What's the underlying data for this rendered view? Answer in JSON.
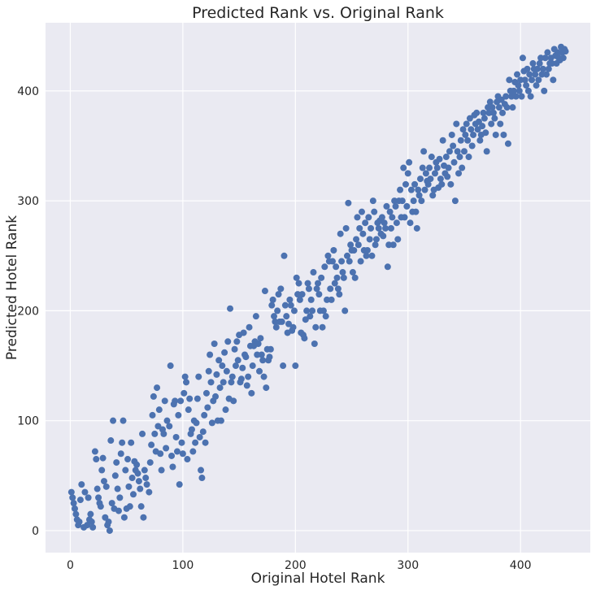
{
  "chart_data": {
    "type": "scatter",
    "title": "Predicted Rank vs. Original Rank",
    "xlabel": "Original Hotel Rank",
    "ylabel": "Predicted Hotel Rank",
    "xlim": [
      -22,
      462
    ],
    "ylim": [
      -20,
      462
    ],
    "xticks": [
      0,
      100,
      200,
      300,
      400
    ],
    "yticks": [
      0,
      100,
      200,
      300,
      400
    ],
    "grid": true,
    "background_color": "#EAEAF2",
    "grid_color": "#FFFFFF",
    "marker_color": "#4C72B0",
    "points": [
      [
        1,
        35
      ],
      [
        2,
        30
      ],
      [
        3,
        25
      ],
      [
        4,
        20
      ],
      [
        5,
        15
      ],
      [
        6,
        10
      ],
      [
        7,
        5
      ],
      [
        8,
        8
      ],
      [
        9,
        28
      ],
      [
        10,
        42
      ],
      [
        12,
        3
      ],
      [
        13,
        35
      ],
      [
        15,
        5
      ],
      [
        16,
        30
      ],
      [
        17,
        10
      ],
      [
        18,
        15
      ],
      [
        19,
        8
      ],
      [
        20,
        3
      ],
      [
        22,
        72
      ],
      [
        23,
        65
      ],
      [
        24,
        38
      ],
      [
        25,
        30
      ],
      [
        26,
        25
      ],
      [
        27,
        22
      ],
      [
        28,
        55
      ],
      [
        29,
        66
      ],
      [
        30,
        45
      ],
      [
        31,
        12
      ],
      [
        32,
        40
      ],
      [
        33,
        5
      ],
      [
        34,
        8
      ],
      [
        35,
        0
      ],
      [
        36,
        82
      ],
      [
        37,
        25
      ],
      [
        38,
        100
      ],
      [
        39,
        20
      ],
      [
        40,
        50
      ],
      [
        41,
        62
      ],
      [
        42,
        38
      ],
      [
        43,
        18
      ],
      [
        44,
        30
      ],
      [
        45,
        70
      ],
      [
        46,
        80
      ],
      [
        47,
        100
      ],
      [
        48,
        12
      ],
      [
        49,
        55
      ],
      [
        50,
        20
      ],
      [
        51,
        65
      ],
      [
        52,
        40
      ],
      [
        53,
        22
      ],
      [
        54,
        80
      ],
      [
        55,
        48
      ],
      [
        56,
        33
      ],
      [
        57,
        63
      ],
      [
        58,
        55
      ],
      [
        59,
        60
      ],
      [
        60,
        52
      ],
      [
        61,
        45
      ],
      [
        62,
        38
      ],
      [
        63,
        22
      ],
      [
        64,
        88
      ],
      [
        65,
        12
      ],
      [
        66,
        55
      ],
      [
        67,
        48
      ],
      [
        68,
        42
      ],
      [
        70,
        35
      ],
      [
        71,
        62
      ],
      [
        72,
        78
      ],
      [
        73,
        105
      ],
      [
        74,
        122
      ],
      [
        75,
        88
      ],
      [
        76,
        72
      ],
      [
        77,
        130
      ],
      [
        78,
        95
      ],
      [
        79,
        110
      ],
      [
        80,
        70
      ],
      [
        81,
        55
      ],
      [
        82,
        92
      ],
      [
        83,
        88
      ],
      [
        84,
        118
      ],
      [
        85,
        75
      ],
      [
        86,
        100
      ],
      [
        88,
        95
      ],
      [
        89,
        150
      ],
      [
        90,
        68
      ],
      [
        91,
        58
      ],
      [
        92,
        115
      ],
      [
        93,
        118
      ],
      [
        94,
        85
      ],
      [
        95,
        72
      ],
      [
        96,
        105
      ],
      [
        97,
        42
      ],
      [
        98,
        118
      ],
      [
        99,
        80
      ],
      [
        100,
        70
      ],
      [
        101,
        125
      ],
      [
        102,
        140
      ],
      [
        103,
        135
      ],
      [
        104,
        65
      ],
      [
        105,
        110
      ],
      [
        106,
        120
      ],
      [
        107,
        88
      ],
      [
        108,
        92
      ],
      [
        109,
        72
      ],
      [
        110,
        100
      ],
      [
        111,
        80
      ],
      [
        112,
        98
      ],
      [
        113,
        120
      ],
      [
        114,
        140
      ],
      [
        115,
        85
      ],
      [
        116,
        55
      ],
      [
        117,
        48
      ],
      [
        118,
        90
      ],
      [
        119,
        105
      ],
      [
        120,
        80
      ],
      [
        121,
        125
      ],
      [
        122,
        112
      ],
      [
        123,
        145
      ],
      [
        124,
        160
      ],
      [
        125,
        135
      ],
      [
        126,
        98
      ],
      [
        127,
        118
      ],
      [
        128,
        170
      ],
      [
        129,
        122
      ],
      [
        130,
        142
      ],
      [
        131,
        100
      ],
      [
        132,
        155
      ],
      [
        133,
        130
      ],
      [
        134,
        100
      ],
      [
        135,
        150
      ],
      [
        136,
        135
      ],
      [
        137,
        162
      ],
      [
        138,
        110
      ],
      [
        139,
        145
      ],
      [
        140,
        172
      ],
      [
        141,
        120
      ],
      [
        142,
        202
      ],
      [
        143,
        135
      ],
      [
        144,
        140
      ],
      [
        145,
        118
      ],
      [
        146,
        165
      ],
      [
        147,
        150
      ],
      [
        148,
        172
      ],
      [
        149,
        155
      ],
      [
        150,
        178
      ],
      [
        151,
        135
      ],
      [
        152,
        138
      ],
      [
        153,
        148
      ],
      [
        154,
        180
      ],
      [
        155,
        160
      ],
      [
        156,
        158
      ],
      [
        157,
        132
      ],
      [
        158,
        140
      ],
      [
        159,
        185
      ],
      [
        160,
        168
      ],
      [
        161,
        125
      ],
      [
        162,
        150
      ],
      [
        163,
        168
      ],
      [
        164,
        172
      ],
      [
        165,
        195
      ],
      [
        166,
        160
      ],
      [
        167,
        170
      ],
      [
        168,
        145
      ],
      [
        169,
        175
      ],
      [
        170,
        160
      ],
      [
        171,
        155
      ],
      [
        172,
        140
      ],
      [
        173,
        218
      ],
      [
        174,
        130
      ],
      [
        175,
        165
      ],
      [
        176,
        155
      ],
      [
        177,
        158
      ],
      [
        178,
        165
      ],
      [
        179,
        205
      ],
      [
        180,
        210
      ],
      [
        181,
        195
      ],
      [
        182,
        190
      ],
      [
        183,
        185
      ],
      [
        184,
        200
      ],
      [
        185,
        215
      ],
      [
        186,
        190
      ],
      [
        187,
        220
      ],
      [
        188,
        190
      ],
      [
        189,
        150
      ],
      [
        190,
        250
      ],
      [
        191,
        205
      ],
      [
        192,
        195
      ],
      [
        193,
        180
      ],
      [
        194,
        188
      ],
      [
        195,
        210
      ],
      [
        196,
        205
      ],
      [
        197,
        182
      ],
      [
        198,
        185
      ],
      [
        199,
        200
      ],
      [
        200,
        150
      ],
      [
        201,
        230
      ],
      [
        202,
        215
      ],
      [
        203,
        225
      ],
      [
        204,
        210
      ],
      [
        205,
        180
      ],
      [
        206,
        215
      ],
      [
        207,
        178
      ],
      [
        208,
        175
      ],
      [
        209,
        192
      ],
      [
        210,
        200
      ],
      [
        211,
        225
      ],
      [
        212,
        220
      ],
      [
        213,
        195
      ],
      [
        214,
        210
      ],
      [
        215,
        200
      ],
      [
        216,
        235
      ],
      [
        217,
        170
      ],
      [
        218,
        185
      ],
      [
        219,
        220
      ],
      [
        220,
        225
      ],
      [
        221,
        215
      ],
      [
        222,
        200
      ],
      [
        223,
        230
      ],
      [
        224,
        185
      ],
      [
        225,
        200
      ],
      [
        226,
        240
      ],
      [
        227,
        195
      ],
      [
        228,
        210
      ],
      [
        229,
        250
      ],
      [
        230,
        245
      ],
      [
        231,
        220
      ],
      [
        232,
        210
      ],
      [
        233,
        245
      ],
      [
        234,
        255
      ],
      [
        235,
        225
      ],
      [
        236,
        240
      ],
      [
        237,
        230
      ],
      [
        238,
        220
      ],
      [
        239,
        215
      ],
      [
        240,
        270
      ],
      [
        241,
        245
      ],
      [
        242,
        235
      ],
      [
        243,
        230
      ],
      [
        244,
        200
      ],
      [
        245,
        275
      ],
      [
        246,
        250
      ],
      [
        247,
        298
      ],
      [
        248,
        245
      ],
      [
        249,
        260
      ],
      [
        250,
        255
      ],
      [
        251,
        235
      ],
      [
        252,
        255
      ],
      [
        253,
        230
      ],
      [
        254,
        265
      ],
      [
        255,
        285
      ],
      [
        256,
        260
      ],
      [
        257,
        275
      ],
      [
        258,
        245
      ],
      [
        259,
        290
      ],
      [
        260,
        270
      ],
      [
        261,
        255
      ],
      [
        262,
        280
      ],
      [
        263,
        250
      ],
      [
        264,
        255
      ],
      [
        265,
        285
      ],
      [
        266,
        265
      ],
      [
        267,
        275
      ],
      [
        268,
        250
      ],
      [
        269,
        300
      ],
      [
        270,
        290
      ],
      [
        271,
        260
      ],
      [
        272,
        265
      ],
      [
        273,
        280
      ],
      [
        274,
        275
      ],
      [
        275,
        282
      ],
      [
        276,
        270
      ],
      [
        277,
        285
      ],
      [
        278,
        268
      ],
      [
        279,
        280
      ],
      [
        280,
        275
      ],
      [
        281,
        295
      ],
      [
        282,
        240
      ],
      [
        283,
        260
      ],
      [
        284,
        290
      ],
      [
        285,
        275
      ],
      [
        286,
        285
      ],
      [
        287,
        260
      ],
      [
        288,
        300
      ],
      [
        289,
        295
      ],
      [
        290,
        280
      ],
      [
        291,
        265
      ],
      [
        292,
        300
      ],
      [
        293,
        310
      ],
      [
        294,
        285
      ],
      [
        295,
        300
      ],
      [
        296,
        330
      ],
      [
        297,
        285
      ],
      [
        298,
        315
      ],
      [
        299,
        295
      ],
      [
        300,
        325
      ],
      [
        301,
        335
      ],
      [
        302,
        280
      ],
      [
        303,
        310
      ],
      [
        304,
        290
      ],
      [
        305,
        300
      ],
      [
        306,
        315
      ],
      [
        307,
        290
      ],
      [
        308,
        275
      ],
      [
        309,
        310
      ],
      [
        310,
        305
      ],
      [
        311,
        320
      ],
      [
        312,
        300
      ],
      [
        313,
        330
      ],
      [
        314,
        345
      ],
      [
        315,
        310
      ],
      [
        316,
        325
      ],
      [
        317,
        318
      ],
      [
        318,
        315
      ],
      [
        319,
        330
      ],
      [
        320,
        320
      ],
      [
        321,
        340
      ],
      [
        322,
        305
      ],
      [
        323,
        310
      ],
      [
        324,
        325
      ],
      [
        325,
        335
      ],
      [
        326,
        330
      ],
      [
        327,
        312
      ],
      [
        328,
        338
      ],
      [
        329,
        320
      ],
      [
        330,
        315
      ],
      [
        331,
        355
      ],
      [
        332,
        332
      ],
      [
        333,
        325
      ],
      [
        334,
        340
      ],
      [
        335,
        322
      ],
      [
        336,
        330
      ],
      [
        337,
        345
      ],
      [
        338,
        315
      ],
      [
        339,
        360
      ],
      [
        340,
        350
      ],
      [
        341,
        335
      ],
      [
        342,
        300
      ],
      [
        343,
        370
      ],
      [
        344,
        345
      ],
      [
        345,
        325
      ],
      [
        346,
        340
      ],
      [
        347,
        355
      ],
      [
        348,
        330
      ],
      [
        349,
        365
      ],
      [
        350,
        345
      ],
      [
        351,
        360
      ],
      [
        352,
        370
      ],
      [
        353,
        355
      ],
      [
        354,
        340
      ],
      [
        355,
        375
      ],
      [
        356,
        365
      ],
      [
        357,
        350
      ],
      [
        358,
        360
      ],
      [
        359,
        378
      ],
      [
        360,
        370
      ],
      [
        361,
        380
      ],
      [
        362,
        365
      ],
      [
        363,
        372
      ],
      [
        364,
        355
      ],
      [
        365,
        360
      ],
      [
        366,
        368
      ],
      [
        367,
        380
      ],
      [
        368,
        375
      ],
      [
        369,
        362
      ],
      [
        370,
        345
      ],
      [
        371,
        385
      ],
      [
        372,
        380
      ],
      [
        373,
        390
      ],
      [
        374,
        370
      ],
      [
        375,
        385
      ],
      [
        376,
        380
      ],
      [
        377,
        375
      ],
      [
        378,
        360
      ],
      [
        379,
        390
      ],
      [
        380,
        395
      ],
      [
        381,
        385
      ],
      [
        382,
        370
      ],
      [
        383,
        392
      ],
      [
        384,
        380
      ],
      [
        385,
        360
      ],
      [
        386,
        388
      ],
      [
        387,
        395
      ],
      [
        388,
        385
      ],
      [
        389,
        352
      ],
      [
        390,
        410
      ],
      [
        391,
        400
      ],
      [
        392,
        395
      ],
      [
        393,
        385
      ],
      [
        394,
        400
      ],
      [
        395,
        408
      ],
      [
        396,
        395
      ],
      [
        397,
        415
      ],
      [
        398,
        405
      ],
      [
        399,
        400
      ],
      [
        400,
        410
      ],
      [
        401,
        395
      ],
      [
        402,
        430
      ],
      [
        403,
        418
      ],
      [
        404,
        410
      ],
      [
        405,
        405
      ],
      [
        406,
        420
      ],
      [
        407,
        400
      ],
      [
        408,
        415
      ],
      [
        409,
        395
      ],
      [
        410,
        410
      ],
      [
        411,
        425
      ],
      [
        412,
        420
      ],
      [
        413,
        415
      ],
      [
        414,
        405
      ],
      [
        415,
        420
      ],
      [
        416,
        410
      ],
      [
        417,
        425
      ],
      [
        418,
        430
      ],
      [
        419,
        415
      ],
      [
        420,
        420
      ],
      [
        421,
        400
      ],
      [
        422,
        430
      ],
      [
        423,
        415
      ],
      [
        424,
        435
      ],
      [
        425,
        420
      ],
      [
        426,
        425
      ],
      [
        427,
        430
      ],
      [
        428,
        425
      ],
      [
        429,
        410
      ],
      [
        430,
        438
      ],
      [
        431,
        432
      ],
      [
        432,
        425
      ],
      [
        433,
        435
      ],
      [
        434,
        430
      ],
      [
        435,
        428
      ],
      [
        436,
        440
      ],
      [
        437,
        435
      ],
      [
        438,
        430
      ],
      [
        439,
        438
      ],
      [
        440,
        436
      ]
    ]
  }
}
